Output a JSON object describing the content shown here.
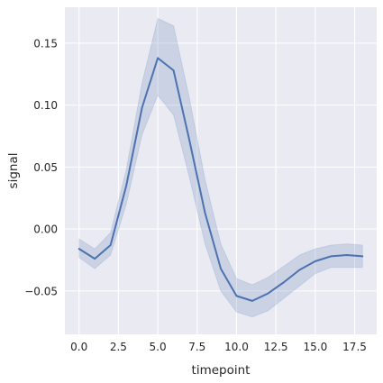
{
  "chart_data": {
    "type": "line",
    "xlabel": "timepoint",
    "ylabel": "signal",
    "xlim": [
      -0.9,
      18.9
    ],
    "ylim": [
      -0.085,
      0.179
    ],
    "xticks": [
      0.0,
      2.5,
      5.0,
      7.5,
      10.0,
      12.5,
      15.0,
      17.5
    ],
    "xtick_labels": [
      "0.0",
      "2.5",
      "5.0",
      "7.5",
      "10.0",
      "12.5",
      "15.0",
      "17.5"
    ],
    "yticks": [
      -0.05,
      0.0,
      0.05,
      0.1,
      0.15
    ],
    "ytick_labels": [
      "−0.05",
      "0.00",
      "0.05",
      "0.10",
      "0.15"
    ],
    "grid": true,
    "background_color": "#eaeaf2",
    "line_color": "#4c72b0",
    "band_color": "#4c72b0",
    "series": [
      {
        "x": [
          0,
          1,
          2,
          3,
          4,
          5,
          6,
          7,
          8,
          9,
          10,
          11,
          12,
          13,
          14,
          15,
          16,
          17,
          18
        ],
        "values": [
          -0.016,
          -0.024,
          -0.013,
          0.035,
          0.098,
          0.138,
          0.128,
          0.072,
          0.013,
          -0.032,
          -0.054,
          -0.058,
          -0.052,
          -0.043,
          -0.033,
          -0.026,
          -0.022,
          -0.021,
          -0.022
        ],
        "ci_lower": [
          -0.023,
          -0.032,
          -0.021,
          0.02,
          0.076,
          0.108,
          0.092,
          0.042,
          -0.012,
          -0.05,
          -0.067,
          -0.071,
          -0.066,
          -0.056,
          -0.046,
          -0.036,
          -0.031,
          -0.031,
          -0.031
        ],
        "ci_upper": [
          -0.008,
          -0.016,
          -0.003,
          0.048,
          0.118,
          0.17,
          0.164,
          0.106,
          0.04,
          -0.012,
          -0.04,
          -0.045,
          -0.039,
          -0.03,
          -0.021,
          -0.016,
          -0.013,
          -0.012,
          -0.013
        ]
      }
    ]
  }
}
